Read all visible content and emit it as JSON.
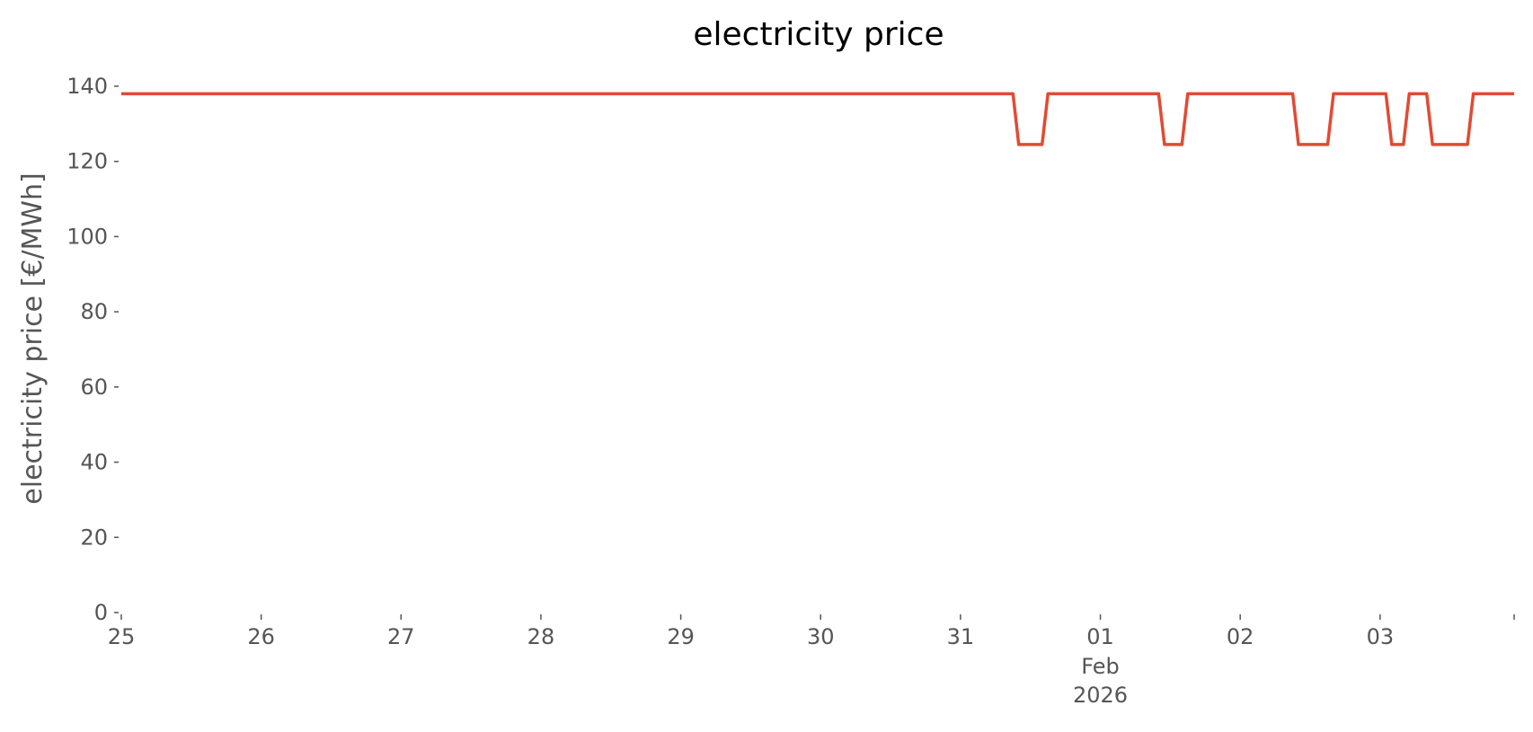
{
  "chart_data": {
    "type": "line",
    "title": "electricity price",
    "xlabel": "",
    "ylabel": "electricity price [€/MWh]",
    "ylim": [
      0,
      140
    ],
    "yticks": [
      "0",
      "20",
      "40",
      "60",
      "80",
      "100",
      "120",
      "140"
    ],
    "xlim": [
      "2026-01-25T00:00",
      "2026-02-03T23:00"
    ],
    "xtick_labels": [
      {
        "date": "2026-01-25",
        "label": "25"
      },
      {
        "date": "2026-01-26",
        "label": "26"
      },
      {
        "date": "2026-01-27",
        "label": "27"
      },
      {
        "date": "2026-01-28",
        "label": "28"
      },
      {
        "date": "2026-01-29",
        "label": "29"
      },
      {
        "date": "2026-01-30",
        "label": "30"
      },
      {
        "date": "2026-01-31",
        "label": "31"
      },
      {
        "date": "2026-02-01",
        "label": "01"
      },
      {
        "date": "2026-02-02",
        "label": "02"
      },
      {
        "date": "2026-02-03",
        "label": "03"
      }
    ],
    "xtick_sublabels": [
      "Feb",
      "2026"
    ],
    "grid": false,
    "line_color": "#E24A33",
    "series": [
      {
        "x": [
          "2026-01-25T00:00",
          "2026-01-31T09:00",
          "2026-01-31T10:00",
          "2026-01-31T14:00",
          "2026-01-31T15:00",
          "2026-02-01T10:00",
          "2026-02-01T11:00",
          "2026-02-01T14:00",
          "2026-02-01T15:00",
          "2026-02-02T09:00",
          "2026-02-02T10:00",
          "2026-02-02T15:00",
          "2026-02-02T16:00",
          "2026-02-03T01:00",
          "2026-02-03T02:00",
          "2026-02-03T04:00",
          "2026-02-03T05:00",
          "2026-02-03T08:00",
          "2026-02-03T09:00",
          "2026-02-03T15:00",
          "2026-02-03T16:00",
          "2026-02-03T23:00"
        ],
        "values": [
          138,
          138,
          124.5,
          124.5,
          138,
          138,
          124.5,
          124.5,
          138,
          138,
          124.5,
          124.5,
          138,
          138,
          124.5,
          124.5,
          138,
          138,
          124.5,
          124.5,
          138,
          138
        ]
      }
    ]
  }
}
